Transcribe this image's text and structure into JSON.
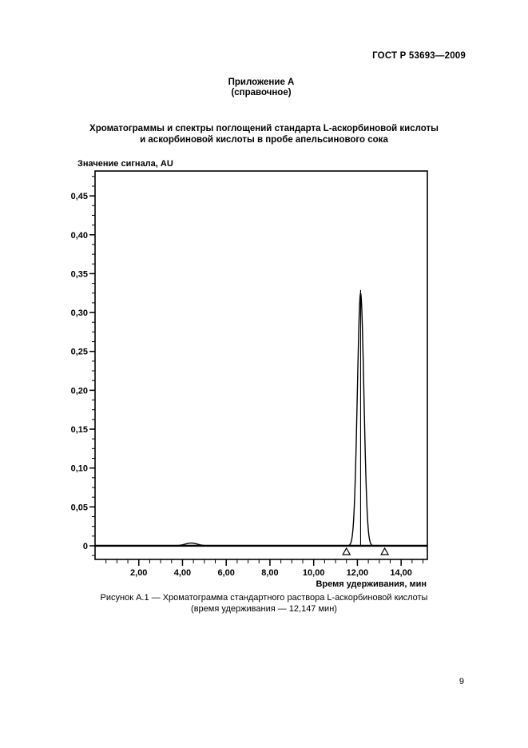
{
  "page": {
    "header": "ГОСТ Р 53693—2009",
    "appendix_line1": "Приложение А",
    "appendix_line2": "(справочное)",
    "title_line1": "Хроматограммы и спектры поглощений стандарта L-аскорбиновой кислоты",
    "title_line2": "и аскорбиновой кислоты в пробе апельсинового сока",
    "caption_line1": "Рисунок А.1 — Хроматограмма стандартного раствора L-аскорбиновой кислоты",
    "caption_line2": "(время удерживания — 12,147 мин)",
    "page_number": "9"
  },
  "chart_data": {
    "type": "line",
    "title": "",
    "xlabel": "Время удерживания, мин",
    "ylabel": "Значение сигнала, AU",
    "xlim": [
      0,
      15.2
    ],
    "ylim": [
      -0.0175,
      0.482
    ],
    "x_major_ticks": [
      2,
      4,
      6,
      8,
      10,
      12,
      14
    ],
    "x_major_labels": [
      "2,00",
      "4,00",
      "6,00",
      "8,00",
      "10,00",
      "12,00",
      "14,00"
    ],
    "x_minor_step": 0.5,
    "y_major_ticks": [
      0,
      0.05,
      0.1,
      0.15,
      0.2,
      0.25,
      0.3,
      0.35,
      0.4,
      0.45
    ],
    "y_major_labels": [
      "0",
      "0,05",
      "0,10",
      "0,15",
      "0,20",
      "0,25",
      "0,30",
      "0,35",
      "0,40",
      "0,45"
    ],
    "y_minor_step": 0.0125,
    "baseline_value": 0,
    "grid": false,
    "legend": false,
    "line_color": "#000000",
    "peaks": [
      {
        "name": "minor-baseline-bump",
        "retention_time_min": 4.4,
        "height_au": 0.0035,
        "sigma_min": 0.28
      },
      {
        "name": "L-ascorbic-acid-standard",
        "retention_time_min": 12.147,
        "height_au": 0.325,
        "sigma_min": 0.15
      }
    ],
    "apex_drop_line": {
      "x_min": 12.147,
      "top_au": 0.329
    },
    "integration_markers_min": [
      11.5,
      13.25
    ]
  }
}
